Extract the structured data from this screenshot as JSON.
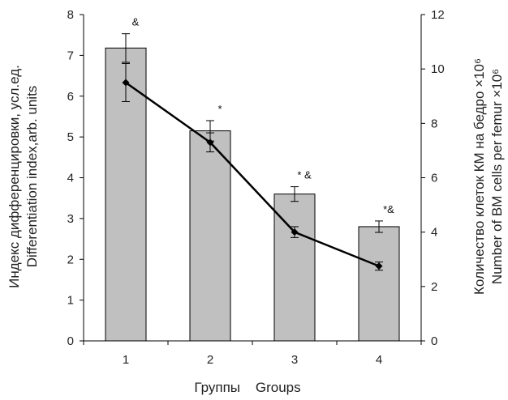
{
  "chart_data": {
    "type": "bar",
    "categories": [
      "1",
      "2",
      "3",
      "4"
    ],
    "xlabel": "Группы    Groups",
    "ylabel_left": [
      "Индекс дифференцировки, усл.ед.",
      "Differentiation index,arb. units"
    ],
    "ylabel_right": [
      "Количество клеток КМ на бедро ×10⁶",
      "Number of BM cells per femur ×10⁶"
    ],
    "ylim_left": [
      0,
      8
    ],
    "ylim_right": [
      0,
      12
    ],
    "yticks_left": [
      "0",
      "1",
      "2",
      "3",
      "4",
      "5",
      "6",
      "7",
      "8"
    ],
    "yticks_right": [
      "0",
      "2",
      "4",
      "6",
      "8",
      "10",
      "12"
    ],
    "bars": {
      "axis": "left",
      "values": [
        7.18,
        5.15,
        3.6,
        2.8
      ],
      "errors": [
        0.35,
        0.25,
        0.18,
        0.14
      ],
      "annotations": [
        "&",
        "*",
        "* &",
        "*&"
      ]
    },
    "line": {
      "axis": "right",
      "values": [
        9.5,
        7.3,
        4.0,
        2.75
      ],
      "errors": [
        0.7,
        0.35,
        0.2,
        0.15
      ]
    }
  }
}
